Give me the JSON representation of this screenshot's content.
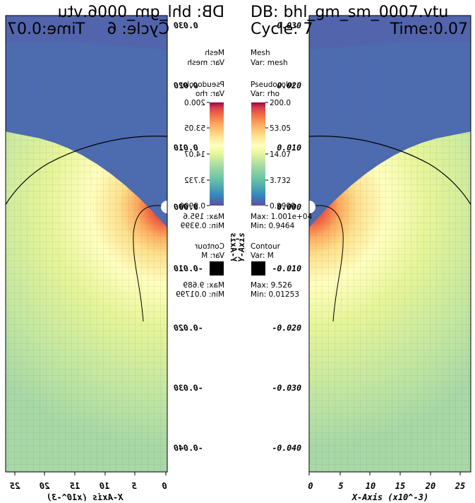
{
  "right_panel": {
    "db": "DB: bhl_gm_sm_0007.vtu",
    "cycle": "Cycle: 7",
    "time": "Time:0.07",
    "mesh": {
      "title": "Mesh",
      "var": "Var: mesh"
    },
    "pseudocolor": {
      "title": "Pseudocolor",
      "var": "Var: rho",
      "ticks": [
        "200.0",
        "53.05",
        "14.07",
        "3.732",
        "0.9900"
      ],
      "max": "Max:  1.001e+04",
      "min": "Min:  0.9464"
    },
    "contour": {
      "title": "Contour",
      "var": "Var: M",
      "max": "Max:  9.526",
      "min": "Min:  0.01253"
    },
    "y_axis_label": "Y-Axis",
    "y_ticks": [
      "0.030",
      "0.020",
      "0.010",
      "0.000",
      "-0.010",
      "-0.020",
      "-0.030",
      "-0.040"
    ],
    "x_ticks": [
      "0",
      "5",
      "10",
      "15",
      "20",
      "25"
    ],
    "x_axis_label": "X-Axis (x10^-3)"
  },
  "left_panel_mirrored": {
    "db": "DB: bhl_gm_0006.vtu",
    "cycle": "Cycle: 6",
    "time": "Time:0.07",
    "mesh": {
      "title": "Mesh",
      "var": "Var: mesh"
    },
    "pseudocolor": {
      "title": "Pseudocolor",
      "var": "Var: rho",
      "ticks": [
        "200.0",
        "53.05",
        "14.07",
        "3.732",
        "0.9900"
      ],
      "max": "Max:  195.6",
      "min": "Min:  0.9399"
    },
    "contour": {
      "title": "Contour",
      "var": "Var: M",
      "max": "Max:  9.689",
      "min": "Min:  0.01799"
    },
    "y_axis_label": "Y-Axis",
    "y_ticks": [
      "0.030",
      "0.020",
      "0.010",
      "0.000",
      "-0.010",
      "-0.020",
      "-0.030",
      "-0.040"
    ],
    "x_ticks": [
      "0",
      "5",
      "10",
      "15",
      "20",
      "25"
    ],
    "x_axis_label": "X-Axis (x10^-3)"
  },
  "colors": {
    "colormap": [
      "#5e4fa2",
      "#3288bd",
      "#66c2a5",
      "#abdda4",
      "#e6f598",
      "#ffffbf",
      "#fee08b",
      "#fdae61",
      "#f46d43",
      "#d53e4f",
      "#9e0142"
    ],
    "outer_field": "#a7d8a6",
    "upper_region": "#4c6bb0"
  }
}
